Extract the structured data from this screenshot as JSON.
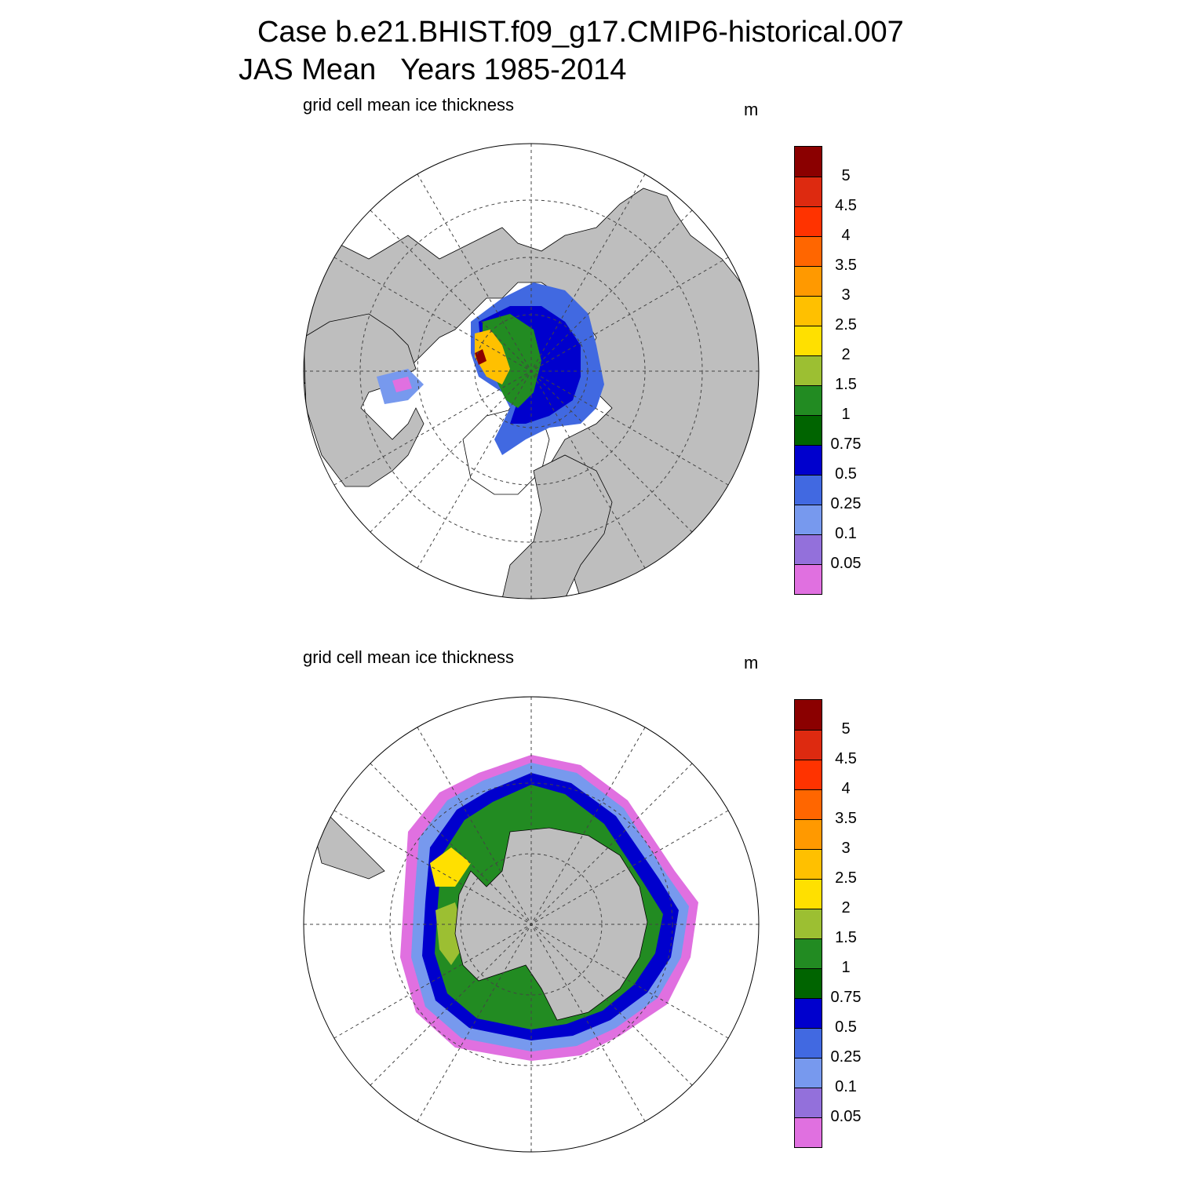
{
  "title": {
    "line1": "Case b.e21.BHIST.f09_g17.CMIP6-historical.007",
    "line2": "JAS Mean   Years 1985-2014"
  },
  "panels": [
    {
      "id": "nh",
      "subtitle": "grid cell mean ice thickness",
      "units": "m"
    },
    {
      "id": "sh",
      "subtitle": "grid cell mean ice thickness",
      "units": "m"
    }
  ],
  "colorbar": {
    "labels": [
      "5",
      "4.5",
      "4",
      "3.5",
      "3",
      "2.5",
      "2",
      "1.5",
      "1",
      "0.75",
      "0.5",
      "0.25",
      "0.1",
      "0.05"
    ],
    "colors_top_to_bottom": [
      "#8b0000",
      "#dd2a10",
      "#ff3300",
      "#ff6600",
      "#ff9900",
      "#ffc000",
      "#ffe000",
      "#9cbf32",
      "#228b22",
      "#006400",
      "#0000cd",
      "#4169e1",
      "#7799ee",
      "#9370db",
      "#e070e0"
    ]
  },
  "colors": {
    "land": "#bebebe",
    "ocean": "#ffffff",
    "grid": "#444444"
  }
}
